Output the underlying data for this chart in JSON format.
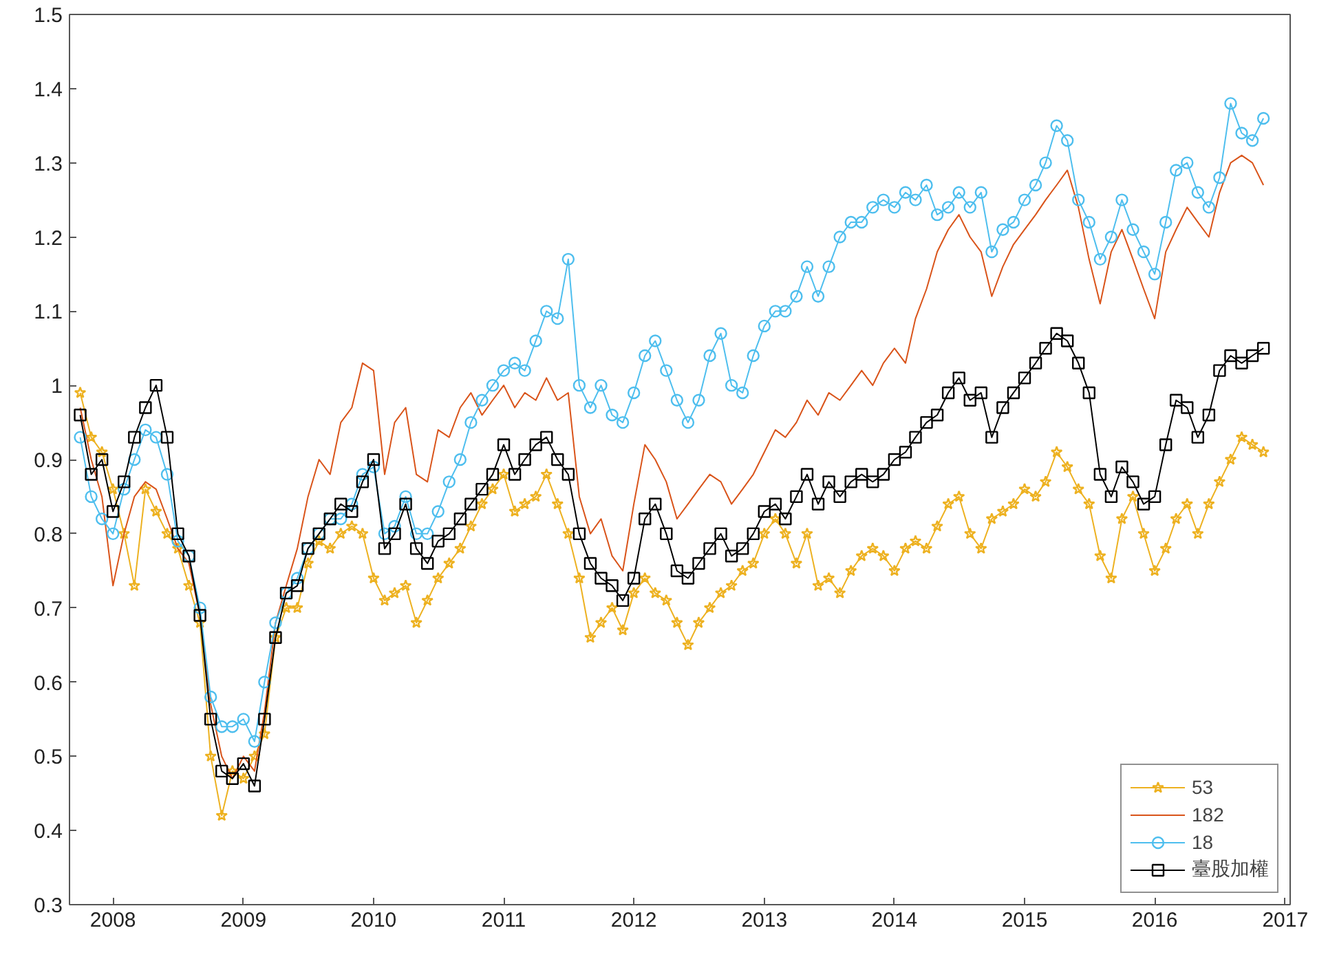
{
  "chart_data": {
    "type": "line",
    "x": [
      "2007-10",
      "2007-11",
      "2007-12",
      "2008-01",
      "2008-02",
      "2008-03",
      "2008-04",
      "2008-05",
      "2008-06",
      "2008-07",
      "2008-08",
      "2008-09",
      "2008-10",
      "2008-11",
      "2008-12",
      "2009-01",
      "2009-02",
      "2009-03",
      "2009-04",
      "2009-05",
      "2009-06",
      "2009-07",
      "2009-08",
      "2009-09",
      "2009-10",
      "2009-11",
      "2009-12",
      "2010-01",
      "2010-02",
      "2010-03",
      "2010-04",
      "2010-05",
      "2010-06",
      "2010-07",
      "2010-08",
      "2010-09",
      "2010-10",
      "2010-11",
      "2010-12",
      "2011-01",
      "2011-02",
      "2011-03",
      "2011-04",
      "2011-05",
      "2011-06",
      "2011-07",
      "2011-08",
      "2011-09",
      "2011-10",
      "2011-11",
      "2011-12",
      "2012-01",
      "2012-02",
      "2012-03",
      "2012-04",
      "2012-05",
      "2012-06",
      "2012-07",
      "2012-08",
      "2012-09",
      "2012-10",
      "2012-11",
      "2012-12",
      "2013-01",
      "2013-02",
      "2013-03",
      "2013-04",
      "2013-05",
      "2013-06",
      "2013-07",
      "2013-08",
      "2013-09",
      "2013-10",
      "2013-11",
      "2013-12",
      "2014-01",
      "2014-02",
      "2014-03",
      "2014-04",
      "2014-05",
      "2014-06",
      "2014-07",
      "2014-08",
      "2014-09",
      "2014-10",
      "2014-11",
      "2014-12",
      "2015-01",
      "2015-02",
      "2015-03",
      "2015-04",
      "2015-05",
      "2015-06",
      "2015-07",
      "2015-08",
      "2015-09",
      "2015-10",
      "2015-11",
      "2015-12",
      "2016-01",
      "2016-02",
      "2016-03",
      "2016-04",
      "2016-05",
      "2016-06",
      "2016-07",
      "2016-08",
      "2016-09",
      "2016-10",
      "2016-11"
    ],
    "series": [
      {
        "name": "53",
        "color": "#edb120",
        "marker": "star",
        "values": [
          0.99,
          0.93,
          0.91,
          0.86,
          0.8,
          0.73,
          0.86,
          0.83,
          0.8,
          0.78,
          0.73,
          0.68,
          0.5,
          0.42,
          0.48,
          0.47,
          0.5,
          0.53,
          0.66,
          0.7,
          0.7,
          0.76,
          0.79,
          0.78,
          0.8,
          0.81,
          0.8,
          0.74,
          0.71,
          0.72,
          0.73,
          0.68,
          0.71,
          0.74,
          0.76,
          0.78,
          0.81,
          0.84,
          0.86,
          0.88,
          0.83,
          0.84,
          0.85,
          0.88,
          0.84,
          0.8,
          0.74,
          0.66,
          0.68,
          0.7,
          0.67,
          0.72,
          0.74,
          0.72,
          0.71,
          0.68,
          0.65,
          0.68,
          0.7,
          0.72,
          0.73,
          0.75,
          0.76,
          0.8,
          0.82,
          0.8,
          0.76,
          0.8,
          0.73,
          0.74,
          0.72,
          0.75,
          0.77,
          0.78,
          0.77,
          0.75,
          0.78,
          0.79,
          0.78,
          0.81,
          0.84,
          0.85,
          0.8,
          0.78,
          0.82,
          0.83,
          0.84,
          0.86,
          0.85,
          0.87,
          0.91,
          0.89,
          0.86,
          0.84,
          0.77,
          0.74,
          0.82,
          0.85,
          0.8,
          0.75,
          0.78,
          0.82,
          0.84,
          0.8,
          0.84,
          0.87,
          0.9,
          0.93,
          0.92,
          0.91
        ]
      },
      {
        "name": "182",
        "color": "#d95319",
        "marker": "none",
        "values": [
          0.97,
          0.9,
          0.85,
          0.73,
          0.8,
          0.85,
          0.87,
          0.86,
          0.82,
          0.78,
          0.76,
          0.69,
          0.57,
          0.5,
          0.47,
          0.5,
          0.48,
          0.56,
          0.68,
          0.73,
          0.78,
          0.85,
          0.9,
          0.88,
          0.95,
          0.97,
          1.03,
          1.02,
          0.88,
          0.95,
          0.97,
          0.88,
          0.87,
          0.94,
          0.93,
          0.97,
          0.99,
          0.96,
          0.98,
          1.0,
          0.97,
          0.99,
          0.98,
          1.01,
          0.98,
          0.99,
          0.85,
          0.8,
          0.82,
          0.77,
          0.75,
          0.84,
          0.92,
          0.9,
          0.87,
          0.82,
          0.84,
          0.86,
          0.88,
          0.87,
          0.84,
          0.86,
          0.88,
          0.91,
          0.94,
          0.93,
          0.95,
          0.98,
          0.96,
          0.99,
          0.98,
          1.0,
          1.02,
          1.0,
          1.03,
          1.05,
          1.03,
          1.09,
          1.13,
          1.18,
          1.21,
          1.23,
          1.2,
          1.18,
          1.12,
          1.16,
          1.19,
          1.21,
          1.23,
          1.25,
          1.27,
          1.29,
          1.24,
          1.17,
          1.11,
          1.18,
          1.21,
          1.17,
          1.13,
          1.09,
          1.18,
          1.21,
          1.24,
          1.22,
          1.2,
          1.26,
          1.3,
          1.31,
          1.3,
          1.27
        ]
      },
      {
        "name": "18",
        "color": "#4dbeee",
        "marker": "circle",
        "values": [
          0.93,
          0.85,
          0.82,
          0.8,
          0.86,
          0.9,
          0.94,
          0.93,
          0.88,
          0.79,
          0.77,
          0.7,
          0.58,
          0.54,
          0.54,
          0.55,
          0.52,
          0.6,
          0.68,
          0.72,
          0.74,
          0.78,
          0.8,
          0.82,
          0.82,
          0.84,
          0.88,
          0.89,
          0.8,
          0.81,
          0.85,
          0.8,
          0.8,
          0.83,
          0.87,
          0.9,
          0.95,
          0.98,
          1.0,
          1.02,
          1.03,
          1.02,
          1.06,
          1.1,
          1.09,
          1.17,
          1.0,
          0.97,
          1.0,
          0.96,
          0.95,
          0.99,
          1.04,
          1.06,
          1.02,
          0.98,
          0.95,
          0.98,
          1.04,
          1.07,
          1.0,
          0.99,
          1.04,
          1.08,
          1.1,
          1.1,
          1.12,
          1.16,
          1.12,
          1.16,
          1.2,
          1.22,
          1.22,
          1.24,
          1.25,
          1.24,
          1.26,
          1.25,
          1.27,
          1.23,
          1.24,
          1.26,
          1.24,
          1.26,
          1.18,
          1.21,
          1.22,
          1.25,
          1.27,
          1.3,
          1.35,
          1.33,
          1.25,
          1.22,
          1.17,
          1.2,
          1.25,
          1.21,
          1.18,
          1.15,
          1.22,
          1.29,
          1.3,
          1.26,
          1.24,
          1.28,
          1.38,
          1.34,
          1.33,
          1.36
        ]
      },
      {
        "name": "臺股加權",
        "color": "#000000",
        "marker": "square",
        "values": [
          0.96,
          0.88,
          0.9,
          0.83,
          0.87,
          0.93,
          0.97,
          1.0,
          0.93,
          0.8,
          0.77,
          0.69,
          0.55,
          0.48,
          0.47,
          0.49,
          0.46,
          0.55,
          0.66,
          0.72,
          0.73,
          0.78,
          0.8,
          0.82,
          0.84,
          0.83,
          0.87,
          0.9,
          0.78,
          0.8,
          0.84,
          0.78,
          0.76,
          0.79,
          0.8,
          0.82,
          0.84,
          0.86,
          0.88,
          0.92,
          0.88,
          0.9,
          0.92,
          0.93,
          0.9,
          0.88,
          0.8,
          0.76,
          0.74,
          0.73,
          0.71,
          0.74,
          0.82,
          0.84,
          0.8,
          0.75,
          0.74,
          0.76,
          0.78,
          0.8,
          0.77,
          0.78,
          0.8,
          0.83,
          0.84,
          0.82,
          0.85,
          0.88,
          0.84,
          0.87,
          0.85,
          0.87,
          0.88,
          0.87,
          0.88,
          0.9,
          0.91,
          0.93,
          0.95,
          0.96,
          0.99,
          1.01,
          0.98,
          0.99,
          0.93,
          0.97,
          0.99,
          1.01,
          1.03,
          1.05,
          1.07,
          1.06,
          1.03,
          0.99,
          0.88,
          0.85,
          0.89,
          0.87,
          0.84,
          0.85,
          0.92,
          0.98,
          0.97,
          0.93,
          0.96,
          1.02,
          1.04,
          1.03,
          1.04,
          1.05
        ]
      }
    ],
    "xlim": [
      "2007-09-01",
      "2017-01-15"
    ],
    "xticks": [
      "2008",
      "2009",
      "2010",
      "2011",
      "2012",
      "2013",
      "2014",
      "2015",
      "2016",
      "2017"
    ],
    "ylim": [
      0.3,
      1.5
    ],
    "yticks": [
      0.3,
      0.4,
      0.5,
      0.6,
      0.7,
      0.8,
      0.9,
      1,
      1.1,
      1.2,
      1.3,
      1.4,
      1.5
    ],
    "grid": false,
    "legend": "bottom right"
  }
}
